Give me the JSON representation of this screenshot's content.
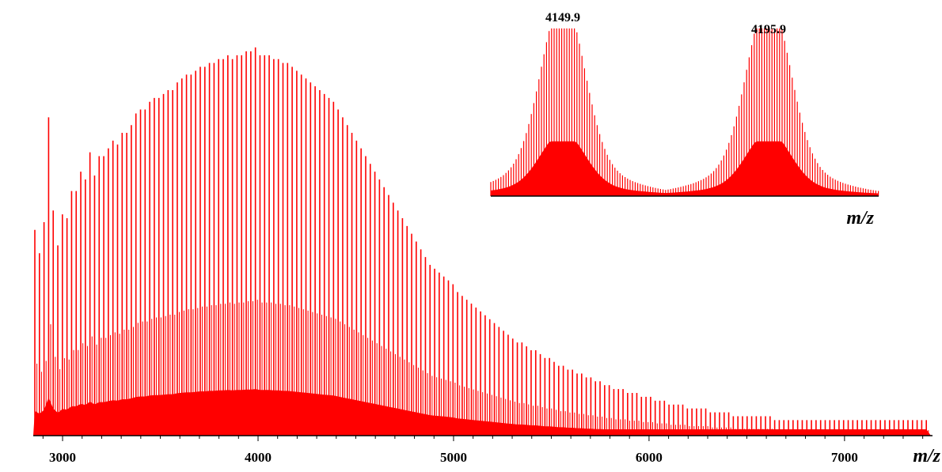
{
  "colors": {
    "spectrum": "#ff0000",
    "axis": "#000000",
    "background": "#ffffff"
  },
  "chart_data": [
    {
      "type": "line",
      "title": "",
      "xlabel": "m/z",
      "ylabel": "",
      "xlim": [
        2850,
        7450
      ],
      "x_ticks": [
        3000,
        4000,
        5000,
        6000,
        7000
      ],
      "x_tick_labels": [
        "3000",
        "4000",
        "5000",
        "6000",
        "7000"
      ],
      "grid": false,
      "legend": "none",
      "series": [
        {
          "peak_spacing_mz": 23,
          "peak_heights_pct": [
            53,
            47,
            55,
            82,
            58,
            49,
            57,
            56,
            63,
            63,
            68,
            66,
            73,
            67,
            72,
            72,
            74,
            76,
            75,
            78,
            78,
            80,
            83,
            84,
            84,
            86,
            87,
            87,
            88,
            89,
            89,
            91,
            92,
            93,
            93,
            94,
            95,
            95,
            96,
            96,
            97,
            97,
            98,
            97,
            98,
            98,
            99,
            99,
            100,
            98,
            98,
            98,
            97,
            97,
            96,
            96,
            95,
            94,
            93,
            92,
            91,
            90,
            89,
            88,
            87,
            86,
            84,
            82,
            80,
            78,
            76,
            74,
            72,
            70,
            68,
            66,
            64,
            62,
            60,
            58,
            56,
            54,
            52,
            50,
            48,
            46,
            44,
            43,
            42,
            41,
            40,
            39,
            37,
            36,
            35,
            34,
            33,
            32,
            31,
            30,
            29,
            28,
            27,
            26,
            25,
            24,
            24,
            23,
            22,
            22,
            21,
            20,
            20,
            19,
            18,
            18,
            17,
            17,
            16,
            16,
            15,
            15,
            14,
            14,
            13,
            13,
            12,
            12,
            12,
            11,
            11,
            11,
            10,
            10,
            10,
            9,
            9,
            9,
            8,
            8,
            8,
            8,
            7,
            7,
            7,
            7,
            7,
            6,
            6,
            6,
            6,
            6,
            5,
            5,
            5,
            5,
            5,
            5,
            5,
            5,
            5,
            4,
            4,
            4,
            4,
            4,
            4,
            4,
            4,
            4,
            4,
            4,
            4,
            4,
            4,
            4,
            4,
            4,
            4,
            4,
            4,
            4,
            4,
            4,
            4,
            4,
            4,
            4,
            4,
            4,
            4,
            4,
            4,
            4,
            4
          ]
        }
      ]
    },
    {
      "type": "line",
      "title": "",
      "xlabel": "m/z",
      "ylabel": "",
      "annotations": [
        {
          "text": "4149.9",
          "x": 4149.9
        },
        {
          "text": "4195.9",
          "x": 4195.9
        }
      ],
      "grid": false,
      "legend": "none"
    }
  ]
}
